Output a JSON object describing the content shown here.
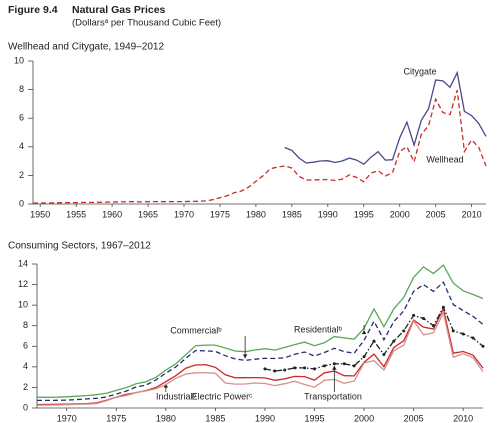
{
  "header": {
    "figure": "Figure 9.4",
    "title": "Natural Gas Prices",
    "subtitle": "(Dollarsᵃ per Thousand Cubic Feet)"
  },
  "chart_data": [
    {
      "type": "line",
      "title": "Wellhead and Citygate, 1949–2012",
      "x": [
        1949,
        1950,
        1951,
        1952,
        1953,
        1954,
        1955,
        1956,
        1957,
        1958,
        1959,
        1960,
        1961,
        1962,
        1963,
        1964,
        1965,
        1966,
        1967,
        1968,
        1969,
        1970,
        1971,
        1972,
        1973,
        1974,
        1975,
        1976,
        1977,
        1978,
        1979,
        1980,
        1981,
        1982,
        1983,
        1984,
        1985,
        1986,
        1987,
        1988,
        1989,
        1990,
        1991,
        1992,
        1993,
        1994,
        1995,
        1996,
        1997,
        1998,
        1999,
        2000,
        2001,
        2002,
        2003,
        2004,
        2005,
        2006,
        2007,
        2008,
        2009,
        2010,
        2011,
        2012
      ],
      "xlim": [
        1949,
        2012
      ],
      "xticks": [
        1950,
        1955,
        1960,
        1965,
        1970,
        1975,
        1980,
        1985,
        1990,
        1995,
        2000,
        2005,
        2010
      ],
      "ylim": [
        0,
        10
      ],
      "yticks": [
        0,
        2,
        4,
        6,
        8,
        10
      ],
      "series": [
        {
          "name": "Citygate",
          "color": "#4a4a8c",
          "style": "solid",
          "values": [
            null,
            null,
            null,
            null,
            null,
            null,
            null,
            null,
            null,
            null,
            null,
            null,
            null,
            null,
            null,
            null,
            null,
            null,
            null,
            null,
            null,
            null,
            null,
            null,
            null,
            null,
            null,
            null,
            null,
            null,
            null,
            null,
            null,
            null,
            null,
            3.95,
            3.75,
            3.22,
            2.87,
            2.92,
            3.01,
            3.03,
            2.9,
            3.01,
            3.21,
            3.07,
            2.78,
            3.27,
            3.66,
            3.07,
            3.1,
            4.62,
            5.72,
            4.12,
            5.85,
            6.65,
            8.67,
            8.61,
            8.16,
            9.18,
            6.48,
            6.18,
            5.63,
            4.73
          ]
        },
        {
          "name": "Wellhead",
          "color": "#cc2a2a",
          "style": "dashed",
          "values": [
            0.06,
            0.07,
            0.07,
            0.08,
            0.09,
            0.1,
            0.1,
            0.11,
            0.11,
            0.12,
            0.13,
            0.14,
            0.15,
            0.16,
            0.16,
            0.15,
            0.16,
            0.17,
            0.16,
            0.16,
            0.17,
            0.17,
            0.18,
            0.19,
            0.22,
            0.3,
            0.44,
            0.58,
            0.79,
            0.91,
            1.18,
            1.59,
            1.98,
            2.46,
            2.59,
            2.66,
            2.51,
            1.94,
            1.67,
            1.69,
            1.69,
            1.71,
            1.64,
            1.74,
            2.04,
            1.85,
            1.55,
            2.17,
            2.32,
            1.96,
            2.19,
            3.68,
            4.0,
            2.95,
            4.88,
            5.46,
            7.33,
            6.39,
            6.25,
            7.96,
            3.67,
            4.48,
            3.95,
            2.66
          ]
        }
      ]
    },
    {
      "type": "line",
      "title": "Consuming Sectors, 1967–2012",
      "x": [
        1967,
        1968,
        1969,
        1970,
        1971,
        1972,
        1973,
        1974,
        1975,
        1976,
        1977,
        1978,
        1979,
        1980,
        1981,
        1982,
        1983,
        1984,
        1985,
        1986,
        1987,
        1988,
        1989,
        1990,
        1991,
        1992,
        1993,
        1994,
        1995,
        1996,
        1997,
        1998,
        1999,
        2000,
        2001,
        2002,
        2003,
        2004,
        2005,
        2006,
        2007,
        2008,
        2009,
        2010,
        2011,
        2012
      ],
      "xlim": [
        1967,
        2012
      ],
      "xticks": [
        1970,
        1975,
        1980,
        1985,
        1990,
        1995,
        2000,
        2005,
        2010
      ],
      "ylim": [
        0,
        14
      ],
      "yticks": [
        0,
        2,
        4,
        6,
        8,
        10,
        12,
        14
      ],
      "series": [
        {
          "name": "Residentialᵇ",
          "color": "#5aa85a",
          "style": "solid",
          "values": [
            1.04,
            1.04,
            1.05,
            1.09,
            1.15,
            1.21,
            1.29,
            1.43,
            1.71,
            1.98,
            2.35,
            2.56,
            2.98,
            3.68,
            4.29,
            5.17,
            6.06,
            6.12,
            6.12,
            5.83,
            5.54,
            5.47,
            5.64,
            5.77,
            5.63,
            5.89,
            6.16,
            6.41,
            6.06,
            6.34,
            6.94,
            6.82,
            6.69,
            7.76,
            9.63,
            7.89,
            9.63,
            10.75,
            12.7,
            13.73,
            13.08,
            13.89,
            12.14,
            11.39,
            11.03,
            10.65
          ]
        },
        {
          "name": "Commercialᵇ",
          "color": "#2a2a6e",
          "style": "dashed",
          "values": [
            0.74,
            0.74,
            0.75,
            0.77,
            0.82,
            0.88,
            0.94,
            1.07,
            1.35,
            1.64,
            2.04,
            2.23,
            2.73,
            3.39,
            4.0,
            4.82,
            5.59,
            5.55,
            5.5,
            5.08,
            4.77,
            4.63,
            4.74,
            4.83,
            4.81,
            4.88,
            5.22,
            5.44,
            5.05,
            5.4,
            5.8,
            5.48,
            5.33,
            6.59,
            8.43,
            6.63,
            8.4,
            9.43,
            11.34,
            12.0,
            11.34,
            12.23,
            10.06,
            9.47,
            8.91,
            8.13
          ]
        },
        {
          "name": "Industrialᵇ",
          "color": "#cc2a2a",
          "style": "solid",
          "values": [
            0.34,
            0.35,
            0.36,
            0.37,
            0.4,
            0.43,
            0.5,
            0.75,
            1.06,
            1.32,
            1.5,
            1.7,
            1.99,
            2.56,
            3.14,
            3.87,
            4.18,
            4.22,
            3.95,
            3.23,
            2.94,
            2.95,
            2.96,
            2.93,
            2.69,
            2.84,
            3.07,
            3.05,
            2.71,
            3.42,
            3.59,
            3.14,
            3.12,
            4.45,
            5.24,
            4.02,
            5.89,
            6.53,
            8.56,
            7.87,
            7.68,
            9.65,
            5.33,
            5.49,
            5.13,
            3.88
          ]
        },
        {
          "name": "Electric Powerᶜ",
          "color": "#d4908c",
          "style": "solid",
          "values": [
            0.28,
            0.28,
            0.29,
            0.32,
            0.35,
            0.38,
            0.43,
            0.71,
            1.04,
            1.22,
            1.5,
            1.67,
            1.87,
            2.27,
            2.89,
            3.3,
            3.42,
            3.44,
            3.37,
            2.43,
            2.32,
            2.33,
            2.43,
            2.38,
            2.18,
            2.36,
            2.61,
            2.28,
            2.02,
            2.69,
            2.78,
            2.4,
            2.62,
            4.38,
            4.61,
            3.68,
            5.57,
            6.11,
            8.47,
            7.11,
            7.31,
            9.26,
            4.93,
            5.27,
            4.89,
            3.54
          ]
        },
        {
          "name": "Transportation",
          "color": "#222222",
          "style": "dashdot",
          "marker": true,
          "values": [
            null,
            null,
            null,
            null,
            null,
            null,
            null,
            null,
            null,
            null,
            null,
            null,
            null,
            null,
            null,
            null,
            null,
            null,
            null,
            null,
            null,
            null,
            null,
            3.8,
            3.6,
            3.7,
            3.9,
            3.9,
            3.8,
            4.1,
            4.3,
            4.3,
            4.1,
            5.0,
            6.5,
            5.2,
            6.5,
            7.5,
            9.0,
            8.7,
            8.0,
            9.8,
            7.5,
            7.2,
            6.8,
            6.0
          ]
        }
      ]
    }
  ]
}
